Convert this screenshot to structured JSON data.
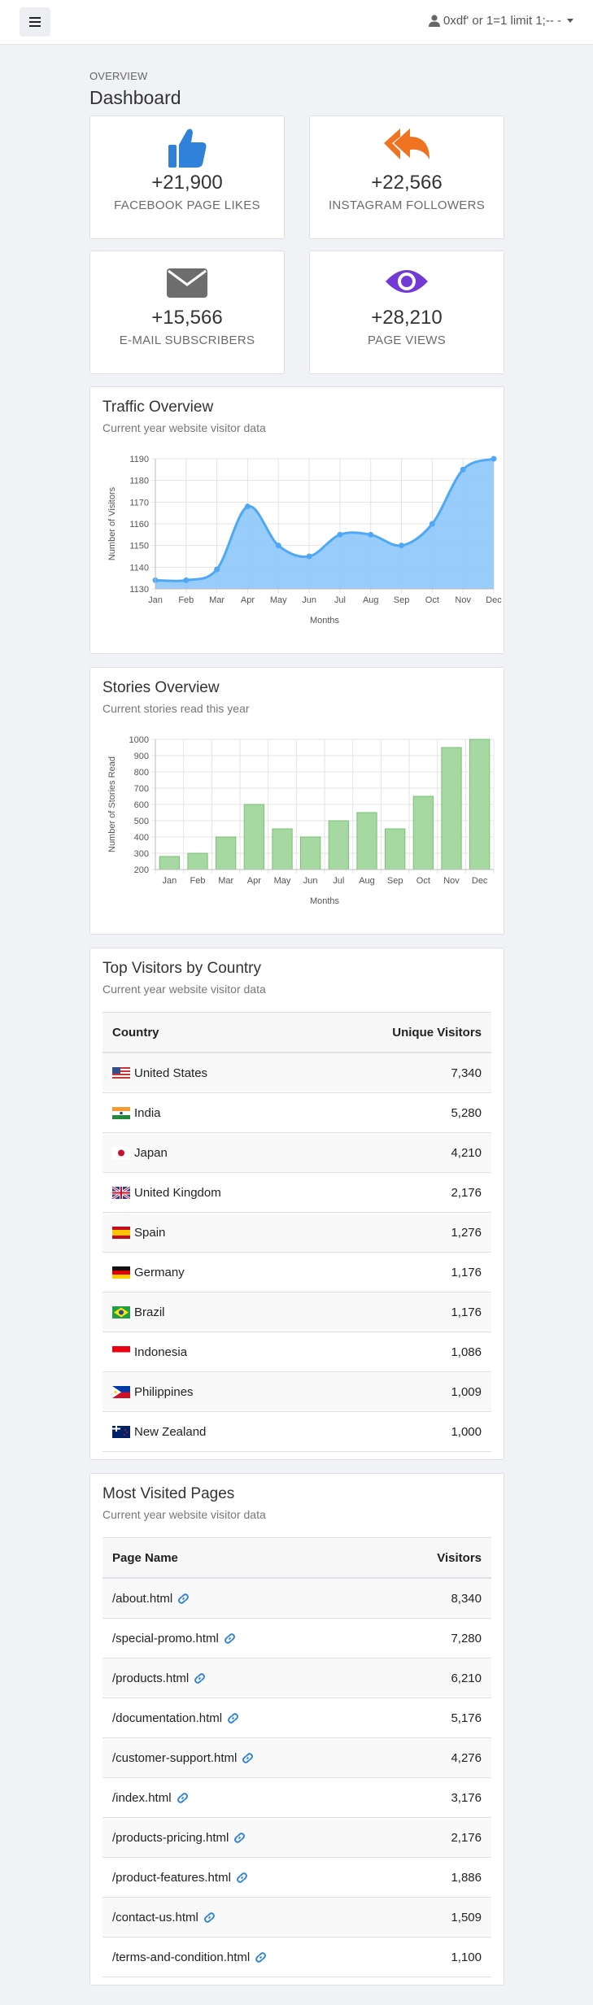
{
  "topbar": {
    "user_label": "0xdf' or 1=1 limit 1;-- -"
  },
  "overview_label": "OVERVIEW",
  "page_title": "Dashboard",
  "stats": [
    {
      "value": "+21,900",
      "label": "FACEBOOK PAGE LIKES",
      "icon": "thumbs-up-icon",
      "color": "#2f82d8"
    },
    {
      "value": "+22,566",
      "label": "INSTAGRAM FOLLOWERS",
      "icon": "reply-all-icon",
      "color": "#f07321"
    },
    {
      "value": "+15,566",
      "label": "E-MAIL SUBSCRIBERS",
      "icon": "envelope-icon",
      "color": "#6d6d6d"
    },
    {
      "value": "+28,210",
      "label": "PAGE VIEWS",
      "icon": "eye-icon",
      "color": "#7239d6"
    }
  ],
  "traffic": {
    "title": "Traffic Overview",
    "subtitle": "Current year website visitor data"
  },
  "stories": {
    "title": "Stories Overview",
    "subtitle": "Current stories read this year"
  },
  "chart_data": [
    {
      "type": "area",
      "categories": [
        "Jan",
        "Feb",
        "Mar",
        "Apr",
        "May",
        "Jun",
        "Jul",
        "Aug",
        "Sep",
        "Oct",
        "Nov",
        "Dec"
      ],
      "series": [
        {
          "values": [
            1134,
            1134,
            1139,
            1168,
            1150,
            1145,
            1155,
            1155,
            1150,
            1160,
            1185,
            1190
          ]
        }
      ],
      "xlabel": "Months",
      "ylabel": "Number of Visitors",
      "ylim": [
        1130,
        1190
      ],
      "yticks": [
        1130,
        1140,
        1150,
        1160,
        1170,
        1180,
        1190
      ],
      "grid": true,
      "color": "#4fa8f5"
    },
    {
      "type": "bar",
      "categories": [
        "Jan",
        "Feb",
        "Mar",
        "Apr",
        "May",
        "Jun",
        "Jul",
        "Aug",
        "Sep",
        "Oct",
        "Nov",
        "Dec"
      ],
      "series": [
        {
          "values": [
            280,
            300,
            400,
            600,
            450,
            400,
            500,
            550,
            450,
            650,
            950,
            1000
          ]
        }
      ],
      "xlabel": "Months",
      "ylabel": "Number of Stories Read",
      "ylim": [
        200,
        1000
      ],
      "yticks": [
        200,
        300,
        400,
        500,
        600,
        700,
        800,
        900,
        1000
      ],
      "grid": true,
      "color": "#a6d8a2"
    }
  ],
  "countries": {
    "title": "Top Visitors by Country",
    "subtitle": "Current year website visitor data",
    "col_country": "Country",
    "col_visitors": "Unique Visitors",
    "rows": [
      {
        "name": "United States",
        "value": "7,340",
        "flag": "us"
      },
      {
        "name": "India",
        "value": "5,280",
        "flag": "in"
      },
      {
        "name": "Japan",
        "value": "4,210",
        "flag": "jp"
      },
      {
        "name": "United Kingdom",
        "value": "2,176",
        "flag": "gb"
      },
      {
        "name": "Spain",
        "value": "1,276",
        "flag": "es"
      },
      {
        "name": "Germany",
        "value": "1,176",
        "flag": "de"
      },
      {
        "name": "Brazil",
        "value": "1,176",
        "flag": "br"
      },
      {
        "name": "Indonesia",
        "value": "1,086",
        "flag": "id"
      },
      {
        "name": "Philippines",
        "value": "1,009",
        "flag": "ph"
      },
      {
        "name": "New Zealand",
        "value": "1,000",
        "flag": "nz"
      }
    ]
  },
  "pages": {
    "title": "Most Visited Pages",
    "subtitle": "Current year website visitor data",
    "col_page": "Page Name",
    "col_visitors": "Visitors",
    "rows": [
      {
        "name": "/about.html",
        "value": "8,340"
      },
      {
        "name": "/special-promo.html",
        "value": "7,280"
      },
      {
        "name": "/products.html",
        "value": "6,210"
      },
      {
        "name": "/documentation.html",
        "value": "5,176"
      },
      {
        "name": "/customer-support.html",
        "value": "4,276"
      },
      {
        "name": "/index.html",
        "value": "3,176"
      },
      {
        "name": "/products-pricing.html",
        "value": "2,176"
      },
      {
        "name": "/product-features.html",
        "value": "1,886"
      },
      {
        "name": "/contact-us.html",
        "value": "1,509"
      },
      {
        "name": "/terms-and-condition.html",
        "value": "1,100"
      }
    ]
  }
}
